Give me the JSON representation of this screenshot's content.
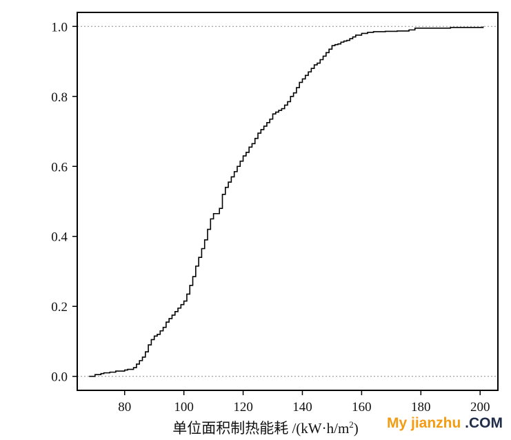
{
  "chart_data": {
    "type": "line",
    "title": "",
    "xlabel": "单位面积制热能耗 /(kW·h/m²)",
    "xlabel_parts": {
      "main": "单位面积制热能耗 /(kW·h/m",
      "sup": "2",
      "tail": ")"
    },
    "ylabel": "",
    "xlim": [
      64,
      206
    ],
    "ylim": [
      -0.04,
      1.04
    ],
    "xticks": [
      80,
      100,
      120,
      140,
      160,
      180,
      200
    ],
    "yticks": [
      0.0,
      0.2,
      0.4,
      0.6,
      0.8,
      1.0
    ],
    "ytick_labels": [
      "0.0",
      "0.2",
      "0.4",
      "0.6",
      "0.8",
      "1.0"
    ],
    "grid": false,
    "reference_lines_y": [
      0.0,
      1.0
    ],
    "series": [
      {
        "x": [
          68,
          70,
          72,
          73,
          75,
          77,
          80,
          81,
          83,
          84,
          85,
          86,
          87,
          88,
          89,
          90,
          91,
          92,
          93,
          94,
          95,
          96,
          97,
          98,
          99,
          100,
          101,
          102,
          103,
          104,
          105,
          106,
          107,
          108,
          109,
          110,
          112,
          113,
          114,
          115,
          116,
          117,
          118,
          119,
          120,
          121,
          122,
          123,
          124,
          125,
          126,
          127,
          128,
          129,
          130,
          131,
          132,
          133,
          134,
          135,
          136,
          137,
          138,
          139,
          140,
          141,
          142,
          143,
          144,
          145,
          146,
          147,
          148,
          149,
          150,
          151,
          152,
          153,
          154,
          155,
          156,
          157,
          158,
          160,
          162,
          164,
          168,
          172,
          176,
          178,
          190,
          201
        ],
        "y": [
          0.0,
          0.005,
          0.008,
          0.01,
          0.012,
          0.015,
          0.018,
          0.02,
          0.025,
          0.035,
          0.045,
          0.055,
          0.07,
          0.09,
          0.105,
          0.115,
          0.12,
          0.13,
          0.14,
          0.155,
          0.165,
          0.175,
          0.185,
          0.195,
          0.205,
          0.215,
          0.235,
          0.26,
          0.285,
          0.315,
          0.34,
          0.365,
          0.39,
          0.42,
          0.45,
          0.465,
          0.48,
          0.52,
          0.54,
          0.555,
          0.57,
          0.585,
          0.6,
          0.615,
          0.63,
          0.64,
          0.655,
          0.665,
          0.68,
          0.695,
          0.705,
          0.715,
          0.725,
          0.735,
          0.75,
          0.755,
          0.76,
          0.765,
          0.775,
          0.785,
          0.8,
          0.81,
          0.825,
          0.84,
          0.85,
          0.86,
          0.87,
          0.88,
          0.89,
          0.895,
          0.905,
          0.915,
          0.925,
          0.935,
          0.945,
          0.948,
          0.95,
          0.955,
          0.958,
          0.96,
          0.965,
          0.97,
          0.975,
          0.98,
          0.983,
          0.985,
          0.986,
          0.987,
          0.99,
          0.995,
          0.997,
          1.0
        ]
      }
    ]
  },
  "watermark": {
    "part1": "My jianzhu",
    "part2": " .COM"
  }
}
